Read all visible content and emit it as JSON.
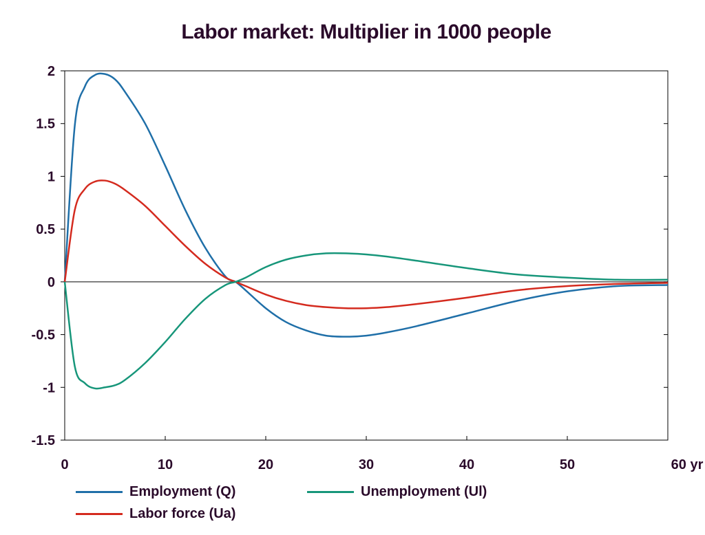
{
  "chart_data": {
    "type": "line",
    "title": "Labor market: Multiplier in 1000 people",
    "xlabel": "",
    "ylabel": "",
    "xlim": [
      0,
      60
    ],
    "ylim": [
      -1.5,
      2
    ],
    "x_ticks": [
      0,
      10,
      20,
      30,
      40,
      50,
      60
    ],
    "x_tick_labels": [
      "0",
      "10",
      "20",
      "30",
      "40",
      "50",
      "60 yr"
    ],
    "y_ticks": [
      2,
      1.5,
      1,
      0.5,
      0,
      -0.5,
      -1,
      -1.5
    ],
    "y_tick_labels": [
      "2",
      "1.5",
      "1",
      "0.5",
      "0",
      "-0.5",
      "-1",
      "-1.5"
    ],
    "grid": false,
    "legend_position": "bottom",
    "x": [
      0,
      1,
      2,
      3,
      4,
      5,
      6,
      8,
      10,
      12,
      14,
      16,
      17,
      18,
      20,
      22,
      24,
      26,
      28,
      30,
      32,
      35,
      40,
      45,
      50,
      55,
      60
    ],
    "series": [
      {
        "name": "Employment (Q)",
        "color": "#1f6fa8",
        "values": [
          0,
          1.48,
          1.85,
          1.96,
          1.97,
          1.92,
          1.8,
          1.5,
          1.1,
          0.68,
          0.32,
          0.05,
          0,
          -0.08,
          -0.25,
          -0.38,
          -0.46,
          -0.51,
          -0.52,
          -0.51,
          -0.48,
          -0.42,
          -0.3,
          -0.18,
          -0.09,
          -0.04,
          -0.03
        ]
      },
      {
        "name": "Labor force (Ua)",
        "color": "#d42a1e",
        "values": [
          0,
          0.68,
          0.88,
          0.95,
          0.96,
          0.93,
          0.87,
          0.72,
          0.53,
          0.34,
          0.17,
          0.04,
          0,
          -0.04,
          -0.12,
          -0.18,
          -0.22,
          -0.24,
          -0.25,
          -0.25,
          -0.24,
          -0.21,
          -0.15,
          -0.08,
          -0.04,
          -0.02,
          -0.01
        ]
      },
      {
        "name": "Unemployment (Ul)",
        "color": "#17967a",
        "values": [
          0,
          -0.8,
          -0.96,
          -1.01,
          -1.0,
          -0.98,
          -0.93,
          -0.77,
          -0.57,
          -0.35,
          -0.16,
          -0.03,
          0,
          0.04,
          0.14,
          0.21,
          0.25,
          0.27,
          0.27,
          0.26,
          0.24,
          0.2,
          0.13,
          0.07,
          0.04,
          0.02,
          0.02
        ]
      }
    ]
  }
}
